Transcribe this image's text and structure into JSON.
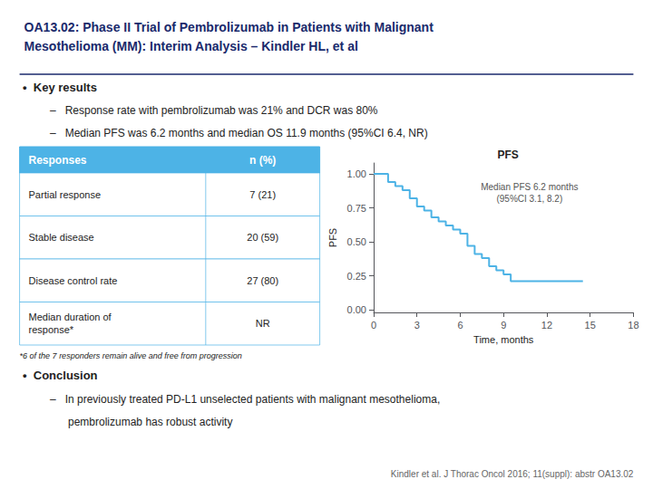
{
  "chart_data": [
    {
      "type": "text",
      "title": "OA13.02: Phase II Trial of Pembrolizumab in Patients with Malignant\nMesothelioma (MM): Interim Analysis – Kindler HL, et al",
      "color": "#1a2a6c",
      "annotations": [
        "•  Key results",
        "–   Response rate with pembrolizumab was 21% and DCR was 80%",
        "–   Median PFS was 6.2 months and median OS 11.9 months (95%CI 6.4, NR)",
        "•  Conclusion",
        "–   In previously treated PD-L1 unselected patients with malignant mesothelioma,",
        "      pembrolizumab has robust activity",
        "Kindler et al. J Thorac Oncol 2016; 11(suppl): abstr OA13.02"
      ]
    },
    {
      "type": "table",
      "columns": [
        "Responses",
        "n (%)"
      ],
      "rows": [
        [
          "Partial response",
          "7 (21)"
        ],
        [
          "Stable disease",
          "20 (59)"
        ],
        [
          "Disease control rate",
          "27 (80)"
        ],
        [
          "Median duration of\nresponse*",
          "NR"
        ]
      ],
      "color": "#4db3e6",
      "annotations": [
        "*6 of the 7 responders remain alive and free from progression"
      ]
    },
    {
      "type": "step",
      "title": "PFS",
      "xlabel": "Time, months",
      "ylabel": "PFS",
      "color": "#4db3e6",
      "x": [
        0,
        0.5,
        1.0,
        1.5,
        2.0,
        2.5,
        3.0,
        3.5,
        4.0,
        4.5,
        5.0,
        5.5,
        6.0,
        6.5,
        7.0,
        7.5,
        8.0,
        8.5,
        9.0,
        9.5,
        10.0,
        10.5,
        11.0,
        12.0,
        13.0,
        14.0,
        14.5
      ],
      "values": [
        1.0,
        1.0,
        0.94,
        0.91,
        0.88,
        0.82,
        0.76,
        0.73,
        0.68,
        0.65,
        0.62,
        0.59,
        0.56,
        0.47,
        0.41,
        0.38,
        0.32,
        0.29,
        0.26,
        0.21,
        0.21,
        0.21,
        0.21,
        0.21,
        0.21,
        0.21,
        0.21
      ],
      "xlim": [
        0,
        18
      ],
      "xticks": [
        0,
        3,
        6,
        9,
        12,
        15,
        18
      ],
      "ylim": [
        -0.02,
        1.08
      ],
      "yticks": [
        {
          "value": 0,
          "label": "0.00"
        },
        0.25,
        {
          "value": 0.5,
          "label": "0.50"
        },
        0.75,
        {
          "value": 1,
          "label": "1.00"
        }
      ],
      "grid": false,
      "annotations": [
        "Median PFS 6.2 months\n(95%CI 3.1, 8.2)"
      ]
    }
  ]
}
